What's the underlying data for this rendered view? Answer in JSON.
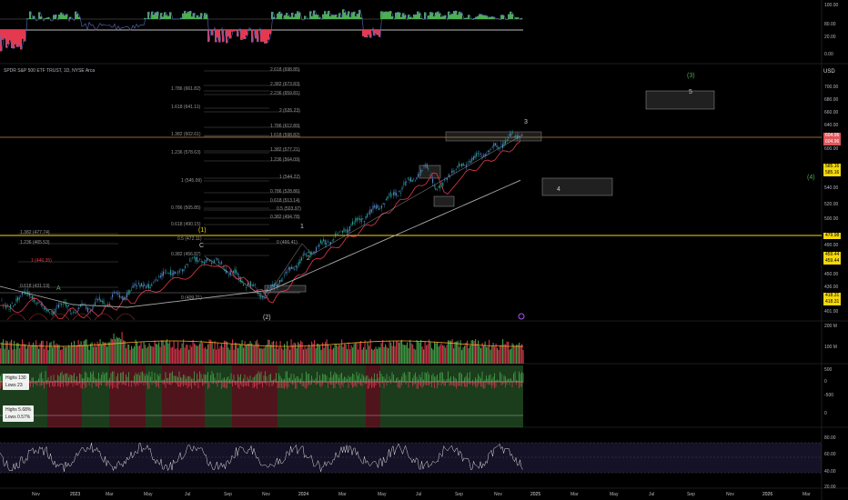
{
  "symbol_line": "SPDR S&P 500 ETF TRUST, 1D, NYSE Arca",
  "currency": "USD",
  "top_panel_scale": [
    "100.00",
    "80.00",
    "20.00",
    "0.00"
  ],
  "price_scale": [
    "700.00",
    "680.00",
    "660.00",
    "640.00",
    "620.00",
    "600.00",
    "580.00",
    "560.00",
    "540.00",
    "520.00",
    "500.00",
    "490.00",
    "470.00",
    "450.00",
    "436.00",
    "425.00",
    "401.00"
  ],
  "price_tags": [
    {
      "label": "604.96",
      "color": "#e1575a",
      "text": "#fff"
    },
    {
      "label": "585.16",
      "color": "#f5d90a",
      "text": "#000"
    },
    {
      "label": "479.98",
      "color": "#f5d90a",
      "text": "#000"
    },
    {
      "label": "459.44",
      "color": "#f5d90a",
      "text": "#000"
    },
    {
      "label": "418.31",
      "color": "#f5d90a",
      "text": "#000"
    }
  ],
  "volume_scale": [
    "200 M",
    "100 M"
  ],
  "breadth_scale": [
    "500",
    "0",
    "-500",
    "0"
  ],
  "rsi_scale": [
    "80.00",
    "60.00",
    "40.00",
    "20.00"
  ],
  "fib_right": [
    "2.618 (698.85)",
    "2.382 (673.83)",
    "2.236 (659.81)",
    "2 (635.23)",
    "1.786 (612.89)",
    "1.618 (598.82)",
    "1.382 (577.21)",
    "1.236 (564.09)",
    "1 (544.22)",
    "0.786 (528.86)",
    "0.618 (513.14)",
    "0.5 (503.97)",
    "0.382 (494.78)",
    "0 (466.41)"
  ],
  "fib_left": [
    "1.786 (661.82)",
    "1.618 (641.11)",
    "1.382 (602.61)",
    "1.236 (578.63)",
    "1 (545.09)",
    "0.786 (505.85)",
    "0.618 (490.15)",
    "0.5 (472.11)",
    "0.382 (456.87)",
    "0 (409.21)"
  ],
  "fib_far_left": [
    "1.382 (477.74)",
    "1.236 (465.53)",
    "1 (446.35)",
    "0.618 (431.19)"
  ],
  "wave_labels": {
    "w1": "(1)",
    "w2": "(2)",
    "w3": "(3)",
    "w4": "(4)",
    "A": "A",
    "C": "C",
    "i1": "1",
    "i2": "2",
    "i3": "3",
    "i4": "4",
    "i5": "5"
  },
  "stats": {
    "highs1": "Highs 130",
    "lows1": "Lows 23",
    "highs2": "Highs 5.68%",
    "lows2": "Lows 0.57%"
  },
  "time_axis": [
    "Nov",
    "2023",
    "Mar",
    "May",
    "Jul",
    "Sep",
    "Nov",
    "2024",
    "Mar",
    "May",
    "Jul",
    "Sep",
    "Nov",
    "2025",
    "Mar",
    "May",
    "Jul",
    "Sep",
    "Nov",
    "2026",
    "Mar"
  ],
  "colors": {
    "up": "#4caf50",
    "down": "#e53950",
    "ma_short": "#e53950",
    "ma_long": "#aaaaaa",
    "fib_line": "#f5d90a",
    "grid": "#1a1a1a",
    "text": "#b2b5be"
  }
}
